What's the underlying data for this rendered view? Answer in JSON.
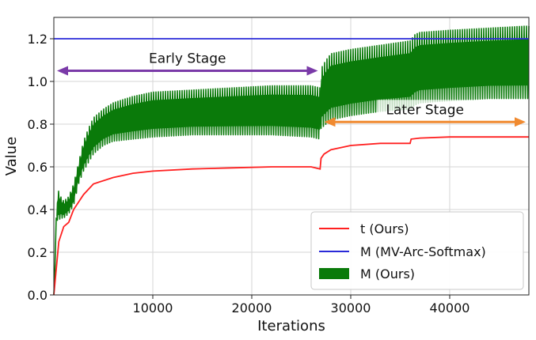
{
  "chart_data": {
    "type": "line",
    "xlabel": "Iterations",
    "ylabel": "Value",
    "xlim": [
      0,
      48000
    ],
    "ylim": [
      0,
      1.3
    ],
    "x_ticks": [
      10000,
      20000,
      30000,
      40000
    ],
    "x_tick_labels": [
      "10000",
      "20000",
      "30000",
      "40000"
    ],
    "y_ticks": [
      0.0,
      0.2,
      0.4,
      0.6,
      0.8,
      1.0,
      1.2
    ],
    "y_tick_labels": [
      "0.0",
      "0.2",
      "0.4",
      "0.6",
      "0.8",
      "1.0",
      "1.2"
    ],
    "grid": true,
    "legend_position": "bottom-right",
    "series": [
      {
        "name": "t (Ours)",
        "kind": "line",
        "color": "#ff2020",
        "x": [
          0,
          200,
          500,
          1000,
          1500,
          2000,
          3000,
          4000,
          6000,
          8000,
          10000,
          14000,
          18000,
          22000,
          26000,
          26900,
          27000,
          27300,
          28000,
          30000,
          33000,
          36000,
          36100,
          37000,
          40000,
          44000,
          48000
        ],
        "values": [
          0.0,
          0.1,
          0.25,
          0.32,
          0.34,
          0.4,
          0.47,
          0.52,
          0.55,
          0.57,
          0.58,
          0.59,
          0.595,
          0.6,
          0.6,
          0.59,
          0.64,
          0.66,
          0.68,
          0.7,
          0.71,
          0.71,
          0.73,
          0.735,
          0.74,
          0.74,
          0.74
        ]
      },
      {
        "name": "M (MV-Arc-Softmax)",
        "kind": "line",
        "color": "#2a2ad8",
        "x": [
          0,
          48000
        ],
        "values": [
          1.2,
          1.2
        ]
      },
      {
        "name": "M (Ours)",
        "kind": "band",
        "color": "#0a7a0a",
        "x": [
          0,
          300,
          500,
          700,
          1000,
          1500,
          2000,
          2500,
          3000,
          3500,
          4000,
          5000,
          6000,
          8000,
          10000,
          14000,
          18000,
          22000,
          26000,
          26900,
          27000,
          27500,
          28000,
          30000,
          33000,
          36000,
          36500,
          37000,
          40000,
          44000,
          48000
        ],
        "lower": [
          0.0,
          0.35,
          0.35,
          0.36,
          0.36,
          0.38,
          0.42,
          0.52,
          0.58,
          0.62,
          0.66,
          0.7,
          0.72,
          0.73,
          0.74,
          0.75,
          0.75,
          0.75,
          0.74,
          0.73,
          0.78,
          0.8,
          0.82,
          0.84,
          0.86,
          0.87,
          0.89,
          0.9,
          0.91,
          0.92,
          0.92
        ],
        "upper": [
          0.0,
          0.45,
          0.49,
          0.46,
          0.44,
          0.46,
          0.52,
          0.62,
          0.72,
          0.78,
          0.83,
          0.87,
          0.9,
          0.93,
          0.95,
          0.96,
          0.97,
          0.98,
          0.98,
          0.97,
          1.06,
          1.1,
          1.13,
          1.15,
          1.17,
          1.19,
          1.22,
          1.23,
          1.24,
          1.25,
          1.26
        ]
      }
    ],
    "annotations": [
      {
        "text": "Early Stage",
        "from_x": 0,
        "to_x": 27000,
        "y": 1.05,
        "color": "#7a3aa8"
      },
      {
        "text": "Later Stage",
        "from_x": 27000,
        "to_x": 48000,
        "y": 0.81,
        "color": "#f08a30"
      }
    ]
  }
}
